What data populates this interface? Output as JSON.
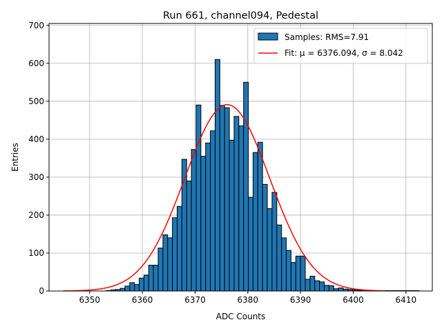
{
  "chart_data": {
    "type": "bar",
    "title": "Run 661, channel094, Pedestal",
    "xlabel": "ADC Counts",
    "ylabel": "Entries",
    "xlim": [
      6342.3,
      6415.0
    ],
    "ylim": [
      0,
      705
    ],
    "xticks": [
      6350,
      6360,
      6370,
      6380,
      6390,
      6400,
      6410
    ],
    "yticks": [
      0,
      100,
      200,
      300,
      400,
      500,
      600,
      700
    ],
    "grid": true,
    "legend_position": "top-right",
    "histogram": {
      "name": "Samples: RMS=7.91",
      "bin_start": 6345,
      "bin_width": 0.9,
      "counts": [
        0,
        0,
        0,
        0,
        0,
        0,
        0,
        0,
        0,
        1,
        3,
        4,
        7,
        13,
        22,
        17,
        34,
        42,
        68,
        68,
        113,
        148,
        140,
        193,
        223,
        347,
        290,
        373,
        490,
        355,
        390,
        422,
        610,
        489,
        483,
        397,
        460,
        435,
        550,
        247,
        365,
        392,
        281,
        217,
        260,
        174,
        140,
        107,
        75,
        92,
        92,
        31,
        39,
        27,
        24,
        15,
        14,
        6,
        8,
        5,
        4,
        3,
        2,
        2,
        1,
        1,
        1,
        1,
        1,
        1,
        1,
        1,
        1,
        1,
        1
      ]
    },
    "fit": {
      "name": "Fit: μ = 6376.094, σ = 8.042",
      "mu": 6376.094,
      "sigma": 8.042,
      "amplitude": 491,
      "x_range": [
        6345,
        6406
      ]
    },
    "colors": {
      "bar_fill": "#1f77b4",
      "bar_edge": "#000000",
      "fit_line": "#ff0000",
      "grid": "#b0b0b0"
    }
  }
}
